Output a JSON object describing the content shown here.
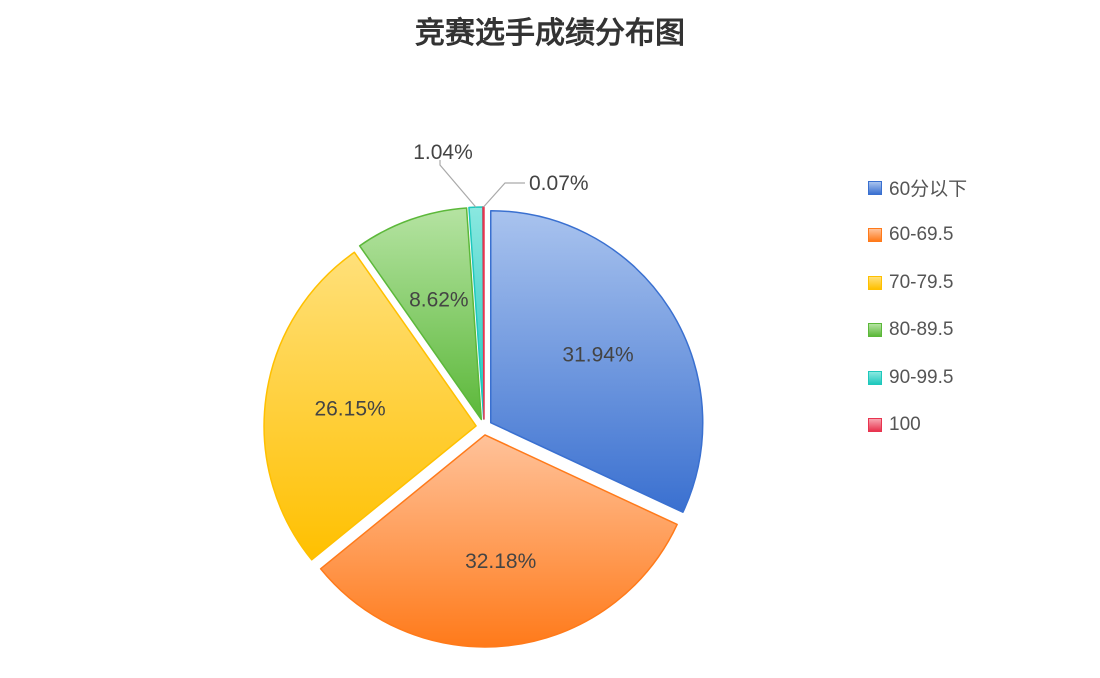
{
  "chart_data": {
    "type": "pie",
    "title": "竞赛选手成绩分布图",
    "categories": [
      "60分以下",
      "60-69.5",
      "70-79.5",
      "80-89.5",
      "90-99.5",
      "100"
    ],
    "values": [
      31.94,
      32.18,
      26.15,
      8.62,
      1.04,
      0.07
    ],
    "labels": [
      "31.94%",
      "32.18%",
      "26.15%",
      "8.62%",
      "1.04%",
      "0.07%"
    ],
    "colors": [
      "#3a70d0",
      "#ff7a1a",
      "#ffc000",
      "#5cb83a",
      "#1fc8bc",
      "#e8344f"
    ],
    "light_colors": [
      "#a9c3ee",
      "#ffc29a",
      "#ffe07a",
      "#b5e3a2",
      "#8ae8e0",
      "#f7a5b0"
    ],
    "legend_position": "right"
  }
}
